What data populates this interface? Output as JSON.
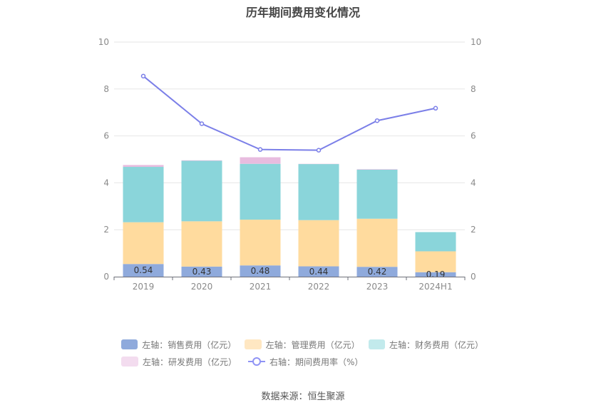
{
  "chart_data": {
    "type": "bar",
    "title": "历年期间费用变化情况",
    "categories": [
      "2019",
      "2020",
      "2021",
      "2022",
      "2023",
      "2024H1"
    ],
    "y_left_ticks": [
      "0",
      "2",
      "4",
      "6",
      "8",
      "10"
    ],
    "y_right_ticks": [
      "0",
      "2",
      "4",
      "6",
      "8",
      "10"
    ],
    "ylim_left": [
      0,
      10
    ],
    "ylim_right": [
      0,
      10
    ],
    "grid": true,
    "stacked": true,
    "series": [
      {
        "name": "左轴：销售费用（亿元）",
        "type": "bar",
        "color": "#8faadc",
        "values": [
          0.54,
          0.43,
          0.48,
          0.44,
          0.42,
          0.19
        ],
        "labels": [
          "0.54",
          "0.43",
          "0.48",
          "0.44",
          "0.42",
          "0.19"
        ]
      },
      {
        "name": "左轴：管理费用（亿元）",
        "type": "bar",
        "color": "#ffdb9e",
        "values": [
          1.78,
          1.93,
          1.95,
          1.97,
          2.05,
          0.89
        ]
      },
      {
        "name": "左轴：财务费用（亿元）",
        "type": "bar",
        "color": "#8ad5da",
        "values": [
          2.36,
          2.58,
          2.38,
          2.39,
          2.09,
          0.82
        ]
      },
      {
        "name": "左轴：研发费用（亿元）",
        "type": "bar",
        "color": "#e8bcdf",
        "values": [
          0.08,
          0.02,
          0.28,
          0.01,
          0.02,
          0.0
        ]
      },
      {
        "name": "右轴：期间费用率（%）",
        "type": "line",
        "color": "#7b7fe8",
        "values": [
          8.55,
          6.52,
          5.42,
          5.39,
          6.65,
          7.18
        ]
      }
    ],
    "legend_position": "bottom"
  },
  "legend": {
    "row1": [
      {
        "label": "左轴：销售费用（亿元）",
        "color": "#8faadc"
      },
      {
        "label": "左轴：管理费用（亿元）",
        "color": "#ffe7c2"
      },
      {
        "label": "左轴：财务费用（亿元）",
        "color": "#c2eaec"
      }
    ],
    "row2": [
      {
        "label": "左轴：研发费用（亿元）",
        "color": "#f3dcef"
      },
      {
        "label": "右轴：期间费用率（%）",
        "color": "#8f93f5"
      }
    ]
  },
  "source": "数据来源：恒生聚源"
}
